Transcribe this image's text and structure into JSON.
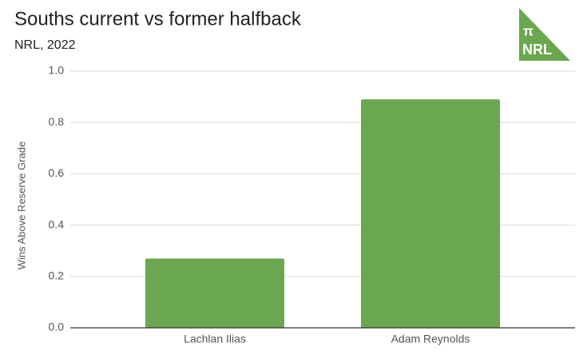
{
  "chart_data": {
    "type": "bar",
    "title": "Souths current vs former halfback",
    "subtitle": "NRL, 2022",
    "y_label": "Wins Above Reserve Grade",
    "categories": [
      "Lachlan Ilias",
      "Adam Reynolds"
    ],
    "values": [
      0.27,
      0.89
    ],
    "color": "#6aa84f",
    "ylim": [
      0,
      1
    ],
    "yticks": [
      {
        "value": 0,
        "label": "0.0"
      },
      0.2,
      0.4,
      0.6,
      0.8,
      {
        "value": 1,
        "label": "1.0"
      }
    ],
    "grid": true
  },
  "logo": {
    "symbol": "π",
    "text": "NRL"
  }
}
